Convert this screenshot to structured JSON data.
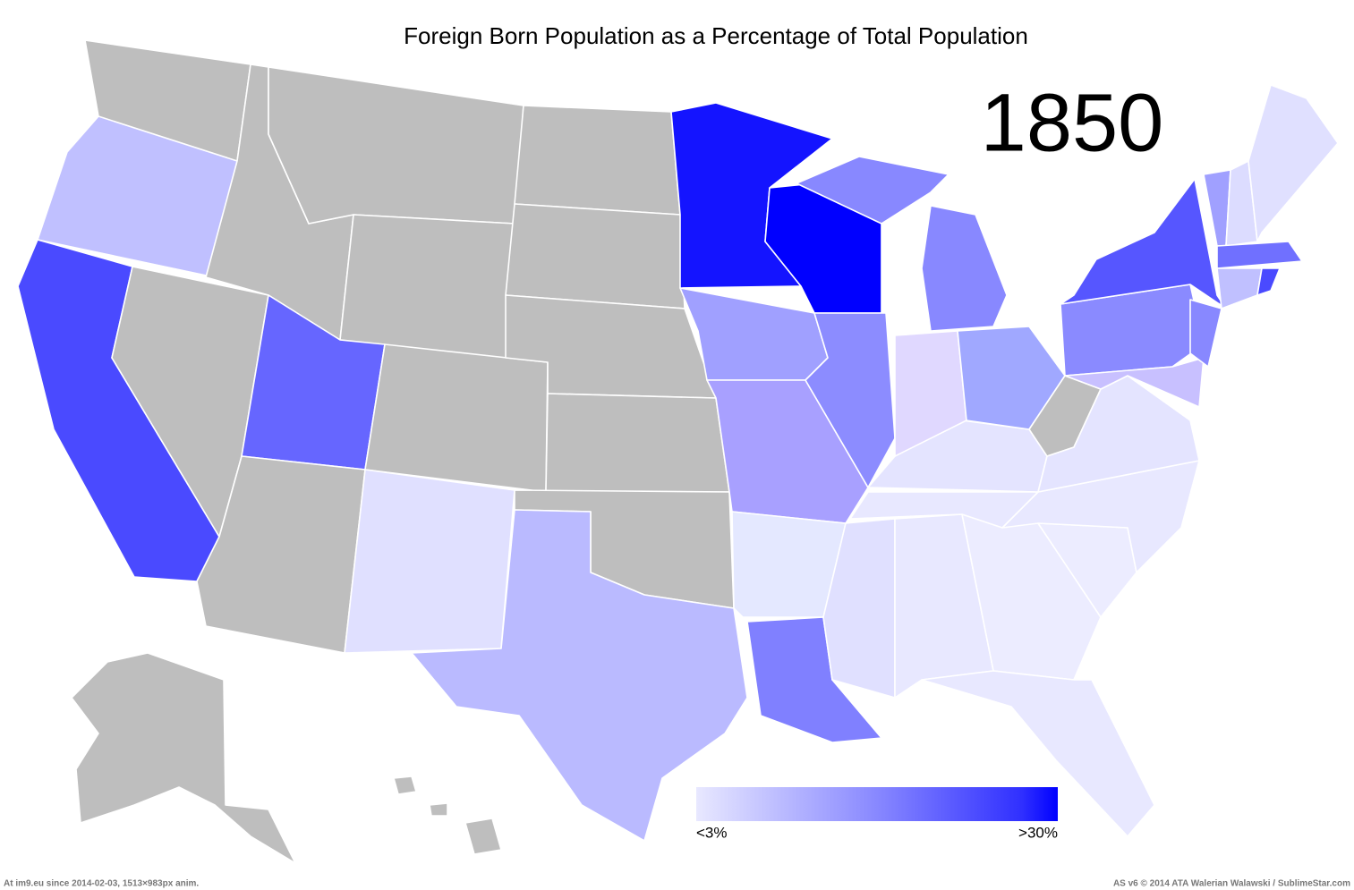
{
  "title": "Foreign Born Population as a Percentage of Total Population",
  "year": "1850",
  "legend": {
    "low_label": "<3%",
    "high_label": ">30%"
  },
  "footer": {
    "left": "At im9.eu  since 2014-02-03, 1513×983px anim.",
    "right": "AS v6 © 2014 ATA Walerian Walawski / SublimeStar.com"
  }
}
